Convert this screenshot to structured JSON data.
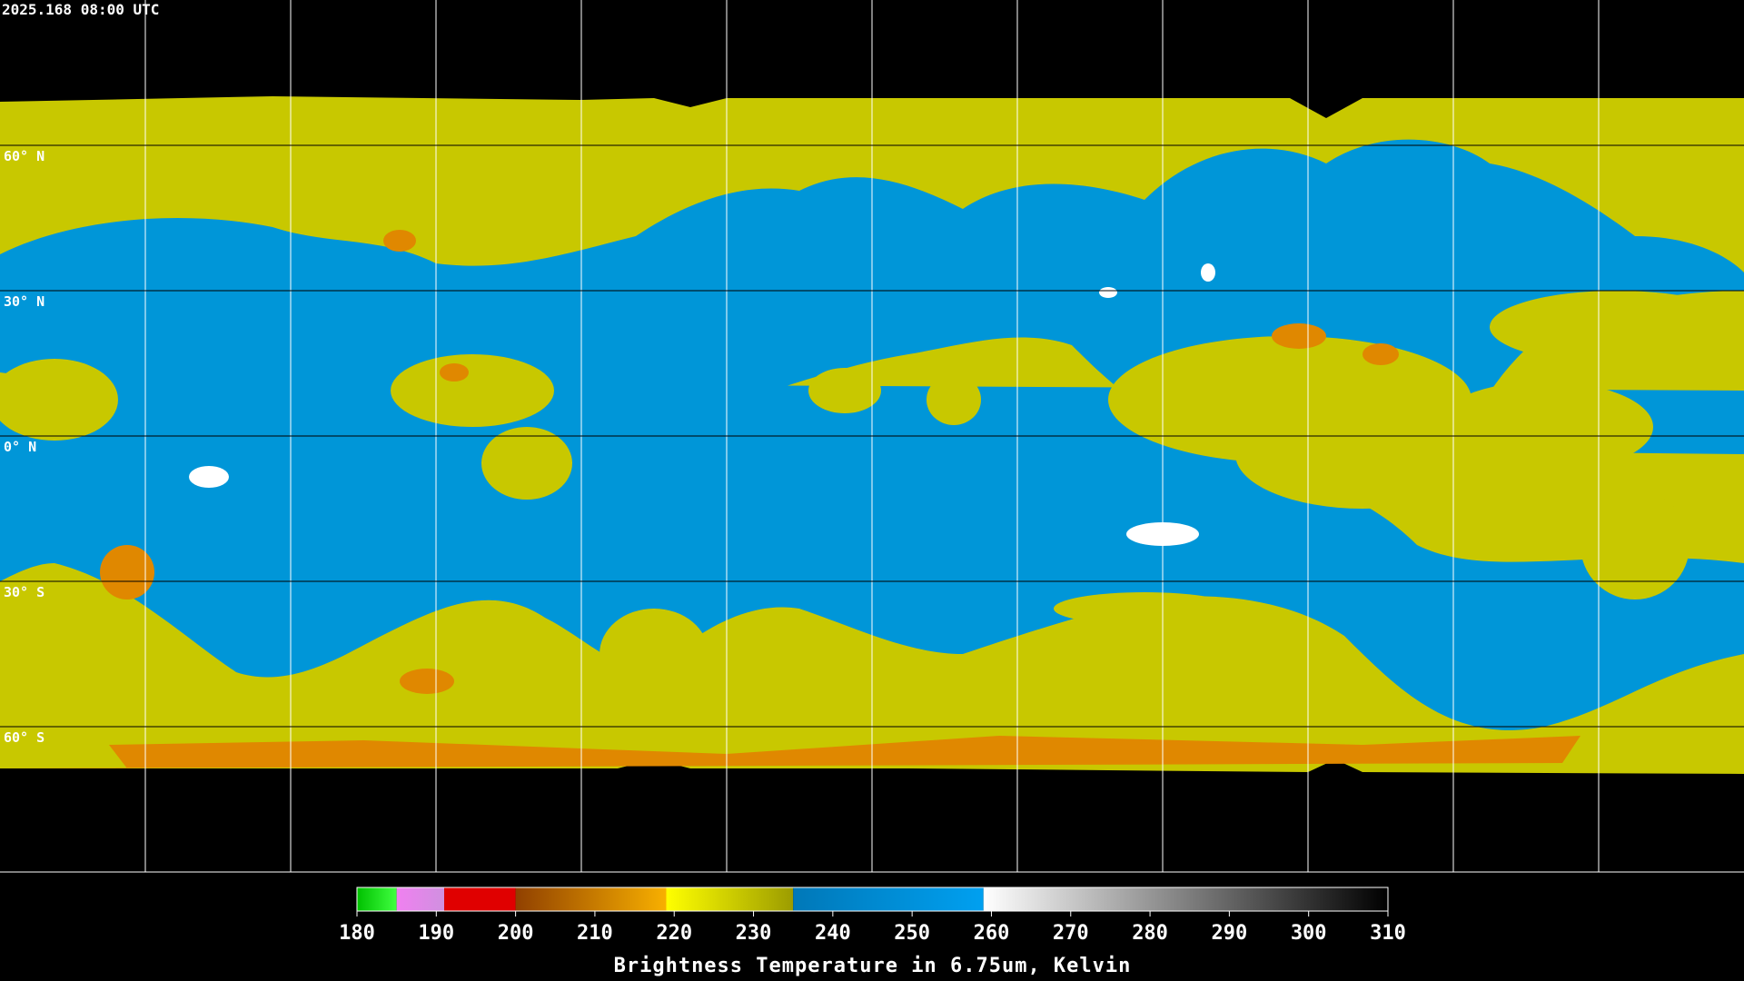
{
  "header": {
    "timestamp": "2025.168 08:00 UTC"
  },
  "map": {
    "lat_lines": [
      {
        "value": 60,
        "label": "60° N"
      },
      {
        "value": 30,
        "label": "30° N"
      },
      {
        "value": 0,
        "label": "0° N"
      },
      {
        "value": -30,
        "label": "30° S"
      },
      {
        "value": -60,
        "label": "60° S"
      }
    ]
  },
  "colorbar": {
    "title": "Brightness Temperature in 6.75um, Kelvin",
    "range": [
      180,
      310
    ],
    "ticks": [
      180,
      190,
      200,
      210,
      220,
      230,
      240,
      250,
      260,
      270,
      280,
      290,
      300,
      310
    ],
    "segments": [
      {
        "from": 180,
        "to": 185,
        "colors": [
          "#00c000",
          "#40ff40"
        ]
      },
      {
        "from": 185,
        "to": 191,
        "colors": [
          "#f080f0",
          "#d090e0"
        ]
      },
      {
        "from": 191,
        "to": 200,
        "colors": [
          "#e00000",
          "#e00000"
        ]
      },
      {
        "from": 200,
        "to": 219,
        "colors": [
          "#904000",
          "#f8b000"
        ]
      },
      {
        "from": 219,
        "to": 235,
        "colors": [
          "#ffff00",
          "#9c9c00"
        ]
      },
      {
        "from": 235,
        "to": 259,
        "colors": [
          "#0078b8",
          "#00a0f0"
        ]
      },
      {
        "from": 259,
        "to": 310,
        "colors": [
          "#ffffff",
          "#000000"
        ]
      }
    ]
  }
}
